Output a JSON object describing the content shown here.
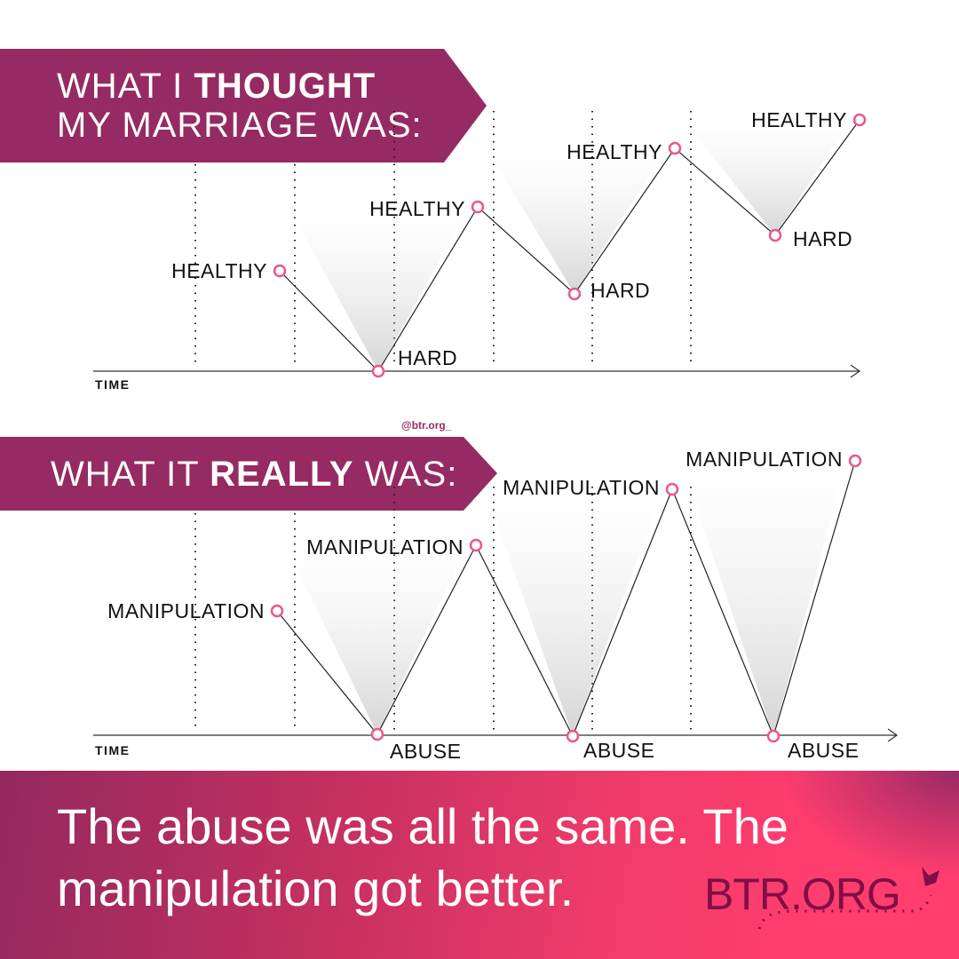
{
  "top_banner": {
    "prefix": "WHAT I ",
    "bold": "THOUGHT",
    "line2": "MY MARRIAGE WAS:"
  },
  "bottom_banner": {
    "prefix": "WHAT IT ",
    "bold": "REALLY",
    "suffix": " WAS:"
  },
  "handle": "@btr.org_",
  "chart_data": [
    {
      "type": "line",
      "xlabel": "TIME",
      "points": [
        "HEALTHY",
        "HARD",
        "HEALTHY",
        "HARD",
        "HEALTHY",
        "HARD",
        "HEALTHY"
      ]
    },
    {
      "type": "line",
      "xlabel": "TIME",
      "points": [
        "MANIPULATION",
        "ABUSE",
        "MANIPULATION",
        "ABUSE",
        "MANIPULATION",
        "ABUSE",
        "MANIPULATION"
      ]
    }
  ],
  "footer": {
    "tagline": "The abuse was all the same. The manipulation got better.",
    "logo": "BTR.ORG"
  },
  "colors": {
    "banner": "#952b62",
    "marker": "#e8588f",
    "logo": "#7f0f45"
  }
}
